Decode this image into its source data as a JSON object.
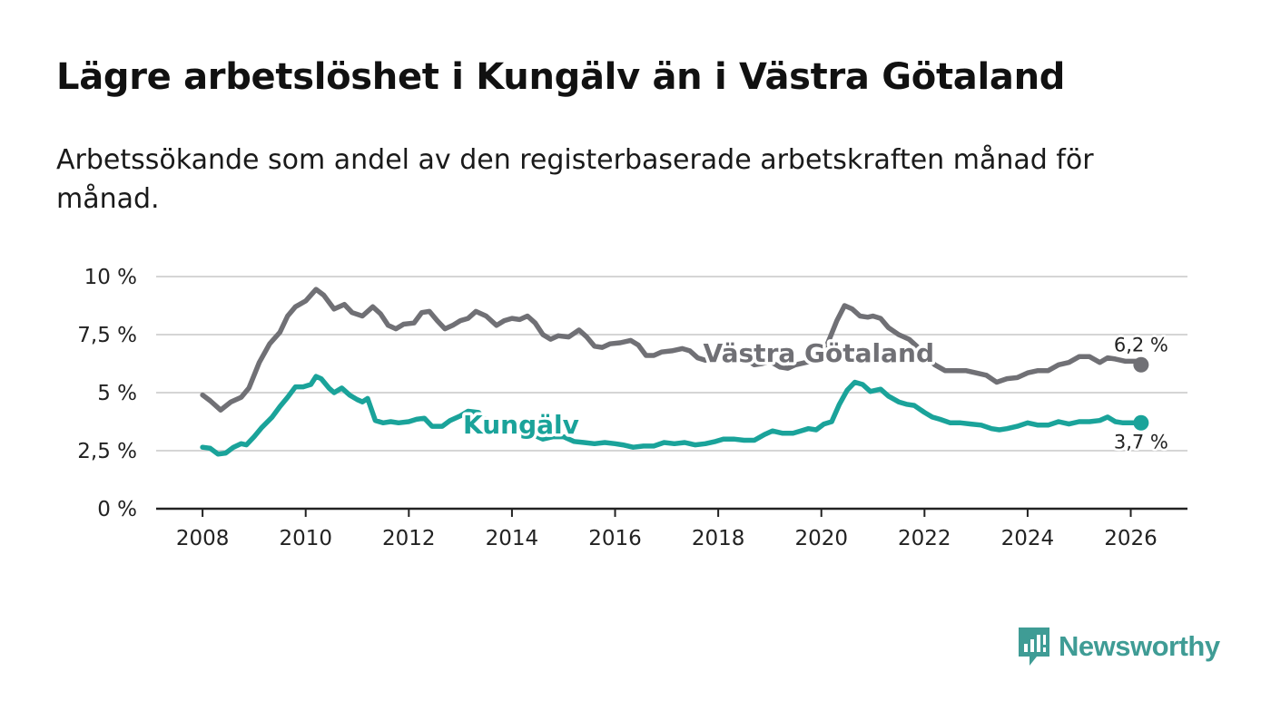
{
  "title": "Lägre arbetslöshet i Kungälv än i Västra Götaland",
  "subtitle": "Arbetssökande som andel av den registerbaserade arbetskraften månad för månad.",
  "brand": "Newsworthy",
  "colors": {
    "kungalv": "#1aa39a",
    "vastra": "#707075",
    "brand": "#3f9c95",
    "axis": "#222222",
    "grid": "#d5d5d5"
  },
  "chart_data": {
    "type": "line",
    "x_unit": "year (decimal)",
    "y_unit": "percent",
    "xlim": [
      2007.1,
      2027.1
    ],
    "ylim": [
      0,
      10
    ],
    "yticks": [
      {
        "value": 0,
        "label": "0 %"
      },
      {
        "value": 2.5,
        "label": "2,5 %"
      },
      {
        "value": 5,
        "label": "5 %"
      },
      {
        "value": 7.5,
        "label": "7,5 %"
      },
      {
        "value": 10,
        "label": "10 %"
      }
    ],
    "xticks": [
      {
        "value": 2008,
        "label": "2008"
      },
      {
        "value": 2010,
        "label": "2010"
      },
      {
        "value": 2012,
        "label": "2012"
      },
      {
        "value": 2014,
        "label": "2014"
      },
      {
        "value": 2016,
        "label": "2016"
      },
      {
        "value": 2018,
        "label": "2018"
      },
      {
        "value": 2020,
        "label": "2020"
      },
      {
        "value": 2022,
        "label": "2022"
      },
      {
        "value": 2024,
        "label": "2024"
      },
      {
        "value": 2026,
        "label": "2026"
      }
    ],
    "series": [
      {
        "name": "Västra Götaland",
        "label": "Västra Götaland",
        "color": "#707075",
        "end_label": "6,2 %",
        "points": [
          [
            2008.0,
            4.9
          ],
          [
            2008.15,
            4.65
          ],
          [
            2008.35,
            4.25
          ],
          [
            2008.55,
            4.6
          ],
          [
            2008.75,
            4.8
          ],
          [
            2008.9,
            5.2
          ],
          [
            2009.1,
            6.3
          ],
          [
            2009.3,
            7.1
          ],
          [
            2009.5,
            7.6
          ],
          [
            2009.65,
            8.3
          ],
          [
            2009.8,
            8.7
          ],
          [
            2010.0,
            8.95
          ],
          [
            2010.1,
            9.2
          ],
          [
            2010.2,
            9.45
          ],
          [
            2010.35,
            9.2
          ],
          [
            2010.55,
            8.6
          ],
          [
            2010.75,
            8.8
          ],
          [
            2010.9,
            8.45
          ],
          [
            2011.1,
            8.3
          ],
          [
            2011.3,
            8.7
          ],
          [
            2011.45,
            8.4
          ],
          [
            2011.6,
            7.9
          ],
          [
            2011.75,
            7.75
          ],
          [
            2011.9,
            7.95
          ],
          [
            2012.1,
            8.0
          ],
          [
            2012.25,
            8.45
          ],
          [
            2012.4,
            8.5
          ],
          [
            2012.55,
            8.1
          ],
          [
            2012.7,
            7.75
          ],
          [
            2012.85,
            7.9
          ],
          [
            2013.0,
            8.1
          ],
          [
            2013.15,
            8.2
          ],
          [
            2013.3,
            8.5
          ],
          [
            2013.5,
            8.3
          ],
          [
            2013.7,
            7.9
          ],
          [
            2013.85,
            8.1
          ],
          [
            2014.0,
            8.2
          ],
          [
            2014.15,
            8.15
          ],
          [
            2014.3,
            8.3
          ],
          [
            2014.45,
            8.0
          ],
          [
            2014.6,
            7.5
          ],
          [
            2014.75,
            7.3
          ],
          [
            2014.9,
            7.45
          ],
          [
            2015.1,
            7.4
          ],
          [
            2015.3,
            7.7
          ],
          [
            2015.45,
            7.4
          ],
          [
            2015.6,
            7.0
          ],
          [
            2015.75,
            6.95
          ],
          [
            2015.9,
            7.1
          ],
          [
            2016.1,
            7.15
          ],
          [
            2016.3,
            7.25
          ],
          [
            2016.45,
            7.05
          ],
          [
            2016.6,
            6.6
          ],
          [
            2016.75,
            6.6
          ],
          [
            2016.9,
            6.75
          ],
          [
            2017.1,
            6.8
          ],
          [
            2017.3,
            6.9
          ],
          [
            2017.45,
            6.8
          ],
          [
            2017.6,
            6.5
          ],
          [
            2017.75,
            6.4
          ],
          [
            2017.9,
            6.55
          ],
          [
            2018.1,
            6.5
          ],
          [
            2018.3,
            6.7
          ],
          [
            2018.5,
            6.5
          ],
          [
            2018.7,
            6.2
          ],
          [
            2018.85,
            6.25
          ],
          [
            2019.0,
            6.35
          ],
          [
            2019.2,
            6.1
          ],
          [
            2019.35,
            6.05
          ],
          [
            2019.5,
            6.2
          ],
          [
            2019.7,
            6.3
          ],
          [
            2019.9,
            6.4
          ],
          [
            2020.1,
            7.0
          ],
          [
            2020.3,
            8.1
          ],
          [
            2020.45,
            8.75
          ],
          [
            2020.6,
            8.6
          ],
          [
            2020.75,
            8.3
          ],
          [
            2020.9,
            8.25
          ],
          [
            2021.0,
            8.3
          ],
          [
            2021.15,
            8.2
          ],
          [
            2021.3,
            7.8
          ],
          [
            2021.5,
            7.5
          ],
          [
            2021.7,
            7.3
          ],
          [
            2021.85,
            7.0
          ],
          [
            2022.0,
            6.6
          ],
          [
            2022.2,
            6.2
          ],
          [
            2022.4,
            5.95
          ],
          [
            2022.6,
            5.95
          ],
          [
            2022.8,
            5.95
          ],
          [
            2023.0,
            5.85
          ],
          [
            2023.2,
            5.75
          ],
          [
            2023.4,
            5.45
          ],
          [
            2023.6,
            5.6
          ],
          [
            2023.8,
            5.65
          ],
          [
            2024.0,
            5.85
          ],
          [
            2024.2,
            5.95
          ],
          [
            2024.4,
            5.95
          ],
          [
            2024.6,
            6.2
          ],
          [
            2024.8,
            6.3
          ],
          [
            2025.0,
            6.55
          ],
          [
            2025.2,
            6.55
          ],
          [
            2025.4,
            6.3
          ],
          [
            2025.55,
            6.5
          ],
          [
            2025.7,
            6.45
          ],
          [
            2025.9,
            6.35
          ],
          [
            2026.1,
            6.35
          ],
          [
            2026.2,
            6.2
          ]
        ]
      },
      {
        "name": "Kungälv",
        "label": "Kungälv",
        "color": "#1aa39a",
        "end_label": "3,7 %",
        "points": [
          [
            2008.0,
            2.65
          ],
          [
            2008.15,
            2.6
          ],
          [
            2008.3,
            2.35
          ],
          [
            2008.45,
            2.4
          ],
          [
            2008.6,
            2.65
          ],
          [
            2008.75,
            2.8
          ],
          [
            2008.85,
            2.75
          ],
          [
            2009.0,
            3.1
          ],
          [
            2009.15,
            3.5
          ],
          [
            2009.35,
            3.95
          ],
          [
            2009.5,
            4.4
          ],
          [
            2009.65,
            4.8
          ],
          [
            2009.8,
            5.25
          ],
          [
            2009.95,
            5.25
          ],
          [
            2010.1,
            5.35
          ],
          [
            2010.2,
            5.7
          ],
          [
            2010.3,
            5.6
          ],
          [
            2010.45,
            5.2
          ],
          [
            2010.55,
            5.0
          ],
          [
            2010.7,
            5.2
          ],
          [
            2010.85,
            4.9
          ],
          [
            2011.0,
            4.7
          ],
          [
            2011.1,
            4.6
          ],
          [
            2011.2,
            4.75
          ],
          [
            2011.35,
            3.8
          ],
          [
            2011.5,
            3.7
          ],
          [
            2011.65,
            3.75
          ],
          [
            2011.8,
            3.7
          ],
          [
            2012.0,
            3.75
          ],
          [
            2012.15,
            3.85
          ],
          [
            2012.3,
            3.9
          ],
          [
            2012.45,
            3.55
          ],
          [
            2012.65,
            3.55
          ],
          [
            2012.8,
            3.8
          ],
          [
            2013.0,
            4.0
          ],
          [
            2013.15,
            4.2
          ],
          [
            2013.35,
            4.15
          ],
          [
            2013.5,
            3.8
          ],
          [
            2013.7,
            3.6
          ],
          [
            2013.85,
            3.7
          ],
          [
            2014.0,
            3.5
          ],
          [
            2014.2,
            3.4
          ],
          [
            2014.4,
            3.2
          ],
          [
            2014.6,
            3.0
          ],
          [
            2014.8,
            3.1
          ],
          [
            2015.0,
            3.1
          ],
          [
            2015.2,
            2.9
          ],
          [
            2015.4,
            2.85
          ],
          [
            2015.6,
            2.8
          ],
          [
            2015.8,
            2.85
          ],
          [
            2016.0,
            2.8
          ],
          [
            2016.15,
            2.75
          ],
          [
            2016.35,
            2.65
          ],
          [
            2016.55,
            2.7
          ],
          [
            2016.75,
            2.7
          ],
          [
            2016.95,
            2.85
          ],
          [
            2017.15,
            2.8
          ],
          [
            2017.35,
            2.85
          ],
          [
            2017.55,
            2.75
          ],
          [
            2017.75,
            2.8
          ],
          [
            2017.95,
            2.9
          ],
          [
            2018.1,
            3.0
          ],
          [
            2018.3,
            3.0
          ],
          [
            2018.5,
            2.95
          ],
          [
            2018.7,
            2.95
          ],
          [
            2018.9,
            3.2
          ],
          [
            2019.05,
            3.35
          ],
          [
            2019.25,
            3.25
          ],
          [
            2019.45,
            3.25
          ],
          [
            2019.6,
            3.35
          ],
          [
            2019.75,
            3.45
          ],
          [
            2019.9,
            3.4
          ],
          [
            2020.05,
            3.65
          ],
          [
            2020.2,
            3.75
          ],
          [
            2020.35,
            4.5
          ],
          [
            2020.5,
            5.1
          ],
          [
            2020.65,
            5.45
          ],
          [
            2020.8,
            5.35
          ],
          [
            2020.95,
            5.05
          ],
          [
            2021.15,
            5.15
          ],
          [
            2021.3,
            4.85
          ],
          [
            2021.5,
            4.6
          ],
          [
            2021.65,
            4.5
          ],
          [
            2021.8,
            4.45
          ],
          [
            2022.0,
            4.15
          ],
          [
            2022.15,
            3.95
          ],
          [
            2022.3,
            3.85
          ],
          [
            2022.5,
            3.7
          ],
          [
            2022.7,
            3.7
          ],
          [
            2022.9,
            3.65
          ],
          [
            2023.1,
            3.6
          ],
          [
            2023.3,
            3.45
          ],
          [
            2023.45,
            3.4
          ],
          [
            2023.6,
            3.45
          ],
          [
            2023.8,
            3.55
          ],
          [
            2024.0,
            3.7
          ],
          [
            2024.2,
            3.6
          ],
          [
            2024.4,
            3.6
          ],
          [
            2024.6,
            3.75
          ],
          [
            2024.8,
            3.65
          ],
          [
            2025.0,
            3.75
          ],
          [
            2025.2,
            3.75
          ],
          [
            2025.4,
            3.8
          ],
          [
            2025.55,
            3.95
          ],
          [
            2025.7,
            3.75
          ],
          [
            2025.85,
            3.7
          ],
          [
            2026.0,
            3.7
          ],
          [
            2026.2,
            3.7
          ]
        ]
      }
    ]
  }
}
